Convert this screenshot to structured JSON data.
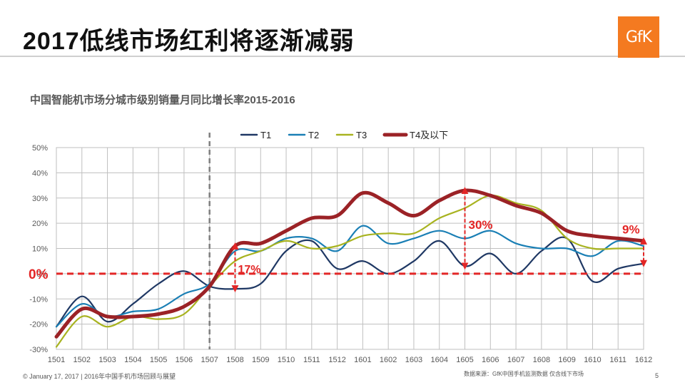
{
  "page": {
    "title": "2017低线市场红利将逐渐减弱",
    "logo_text": "GfK",
    "footer_copyright": "© January 17, 2017 | 2016年中国手机市场回顾与展望",
    "footer_source": "数据来源：GfK中国手机监测数据 仅含线下市场",
    "page_number": "5"
  },
  "chart_data": {
    "type": "line",
    "title": "中国智能机市场分城市级别销量月同比增长率2015-2016",
    "xlabel": "",
    "ylabel": "",
    "ylim": [
      -30,
      50
    ],
    "yticks": [
      -30,
      -20,
      -10,
      0,
      10,
      20,
      30,
      40,
      50
    ],
    "ytick_labels": [
      "-30%",
      "-20%",
      "-10%",
      "0%",
      "10%",
      "20%",
      "30%",
      "40%",
      "50%"
    ],
    "categories": [
      "1501",
      "1502",
      "1503",
      "1504",
      "1505",
      "1506",
      "1507",
      "1508",
      "1509",
      "1510",
      "1511",
      "1512",
      "1601",
      "1602",
      "1603",
      "1604",
      "1605",
      "1606",
      "1607",
      "1608",
      "1609",
      "1610",
      "1611",
      "1612"
    ],
    "grid": true,
    "legend_position": "top",
    "series": [
      {
        "name": "T1",
        "color": "#1f3864",
        "width": 2.2,
        "values": [
          -21,
          -9,
          -19,
          -12,
          -4,
          1,
          -5,
          -6,
          -4,
          9,
          13,
          2,
          5,
          0,
          5,
          13,
          3,
          8,
          0,
          9,
          14,
          -3,
          2,
          4
        ]
      },
      {
        "name": "T2",
        "color": "#1a7fb5",
        "width": 2.2,
        "values": [
          -21,
          -12,
          -17,
          -15,
          -14,
          -8,
          -4,
          9,
          9,
          14,
          14,
          9,
          19,
          12,
          14,
          17,
          14,
          17,
          12,
          10,
          10,
          7,
          13,
          11
        ]
      },
      {
        "name": "T3",
        "color": "#a8b320",
        "width": 2.2,
        "values": [
          -29,
          -17,
          -21,
          -17,
          -18,
          -16,
          -5,
          5,
          9,
          13,
          10,
          11,
          15,
          16,
          16,
          22,
          26,
          31,
          28,
          25,
          14,
          10,
          10,
          10
        ]
      },
      {
        "name": "T4及以下",
        "color": "#9b2226",
        "width": 5,
        "values": [
          -25,
          -14,
          -17,
          -17,
          -16,
          -13,
          -5,
          11,
          12,
          17,
          22,
          23,
          32,
          28,
          23,
          29,
          33,
          31,
          27,
          24,
          17,
          15,
          14,
          13
        ]
      }
    ],
    "annotations": {
      "zero_label": "0%",
      "label_1508": "17%",
      "label_1605": "30%",
      "label_1612": "9%",
      "divider_category": "1507",
      "annotation_color": "#e32626"
    }
  }
}
